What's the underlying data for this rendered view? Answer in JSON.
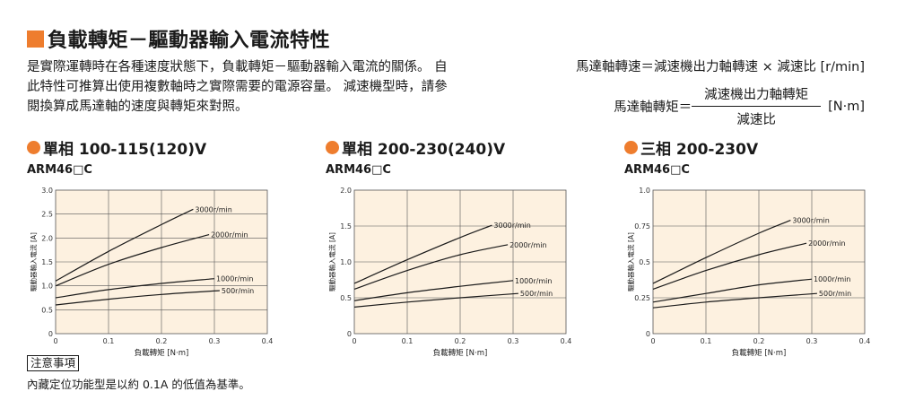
{
  "title": "負載轉矩－驅動器輸入電流特性",
  "intro": "是實際運轉時在各種速度狀態下，負載轉矩－驅動器輸入電流的關係。 自此特性可推算出使用複數軸時之實際需要的電源容量。 減速機型時，請參閱換算成馬達軸的速度與轉矩來對照。",
  "formula": {
    "speed_line": "馬達軸轉速＝減速機出力軸轉速 × 減速比 [r/min]",
    "torque_label": "馬達軸轉矩＝",
    "torque_numerator": "減速機出力軸轉矩",
    "torque_denominator": "減速比",
    "torque_unit": "[N·m]"
  },
  "note": {
    "label": "注意事項",
    "text": "內藏定位功能型是以約 0.1A 的低值為基準。"
  },
  "colors": {
    "accent": "#ee7d2e",
    "plot_bg": "#fdf1e0",
    "curve": "#1a1a1a"
  },
  "chart_data": [
    {
      "type": "line",
      "title": "單相 100-115(120)V",
      "model": "ARM46□C",
      "xlabel": "負載轉矩 [N·m]",
      "ylabel": "驅動器輸入電流 [A]",
      "xlim": [
        0,
        0.4
      ],
      "ylim": [
        0,
        3.0
      ],
      "x_ticks": [
        "0",
        "0.1",
        "0.2",
        "0.3",
        "0.4"
      ],
      "y_ticks": [
        "0",
        "0.5",
        "1.0",
        "1.5",
        "2.0",
        "2.5",
        "3.0"
      ],
      "grid": true,
      "series": [
        {
          "name": "3000r/min",
          "points": [
            [
              0,
              1.1
            ],
            [
              0.1,
              1.72
            ],
            [
              0.2,
              2.28
            ],
            [
              0.26,
              2.6
            ]
          ]
        },
        {
          "name": "2000r/min",
          "points": [
            [
              0,
              1.0
            ],
            [
              0.1,
              1.45
            ],
            [
              0.2,
              1.8
            ],
            [
              0.29,
              2.07
            ]
          ]
        },
        {
          "name": "1000r/min",
          "points": [
            [
              0,
              0.75
            ],
            [
              0.1,
              0.92
            ],
            [
              0.2,
              1.05
            ],
            [
              0.3,
              1.15
            ]
          ]
        },
        {
          "name": "500r/min",
          "points": [
            [
              0,
              0.6
            ],
            [
              0.1,
              0.72
            ],
            [
              0.2,
              0.82
            ],
            [
              0.31,
              0.9
            ]
          ]
        }
      ]
    },
    {
      "type": "line",
      "title": "單相 200-230(240)V",
      "model": "ARM46□C",
      "xlabel": "負載轉矩 [N·m]",
      "ylabel": "驅動器輸入電流 [A]",
      "xlim": [
        0,
        0.4
      ],
      "ylim": [
        0,
        2.0
      ],
      "x_ticks": [
        "0",
        "0.1",
        "0.2",
        "0.3",
        "0.4"
      ],
      "y_ticks": [
        "0",
        "0.5",
        "1.0",
        "1.5",
        "2.0"
      ],
      "grid": true,
      "series": [
        {
          "name": "3000r/min",
          "points": [
            [
              0,
              0.7
            ],
            [
              0.1,
              1.03
            ],
            [
              0.2,
              1.34
            ],
            [
              0.26,
              1.51
            ]
          ]
        },
        {
          "name": "2000r/min",
          "points": [
            [
              0,
              0.62
            ],
            [
              0.1,
              0.88
            ],
            [
              0.2,
              1.1
            ],
            [
              0.29,
              1.24
            ]
          ]
        },
        {
          "name": "1000r/min",
          "points": [
            [
              0,
              0.46
            ],
            [
              0.1,
              0.57
            ],
            [
              0.2,
              0.66
            ],
            [
              0.3,
              0.74
            ]
          ]
        },
        {
          "name": "500r/min",
          "points": [
            [
              0,
              0.37
            ],
            [
              0.1,
              0.44
            ],
            [
              0.2,
              0.5
            ],
            [
              0.31,
              0.56
            ]
          ]
        }
      ]
    },
    {
      "type": "line",
      "title": "三相 200-230V",
      "model": "ARM46□C",
      "xlabel": "負載轉矩 [N·m]",
      "ylabel": "驅動器輸入電流 [A]",
      "xlim": [
        0,
        0.4
      ],
      "ylim": [
        0,
        1.0
      ],
      "x_ticks": [
        "0",
        "0.1",
        "0.2",
        "0.3",
        "0.4"
      ],
      "y_ticks": [
        "0",
        "0.25",
        "0.5",
        "0.75",
        "1.0"
      ],
      "grid": true,
      "series": [
        {
          "name": "3000r/min",
          "points": [
            [
              0,
              0.35
            ],
            [
              0.1,
              0.53
            ],
            [
              0.2,
              0.7
            ],
            [
              0.26,
              0.79
            ]
          ]
        },
        {
          "name": "2000r/min",
          "points": [
            [
              0,
              0.31
            ],
            [
              0.1,
              0.44
            ],
            [
              0.2,
              0.55
            ],
            [
              0.29,
              0.63
            ]
          ]
        },
        {
          "name": "1000r/min",
          "points": [
            [
              0,
              0.22
            ],
            [
              0.1,
              0.28
            ],
            [
              0.2,
              0.34
            ],
            [
              0.3,
              0.38
            ]
          ]
        },
        {
          "name": "500r/min",
          "points": [
            [
              0,
              0.18
            ],
            [
              0.1,
              0.22
            ],
            [
              0.2,
              0.25
            ],
            [
              0.31,
              0.28
            ]
          ]
        }
      ]
    }
  ]
}
